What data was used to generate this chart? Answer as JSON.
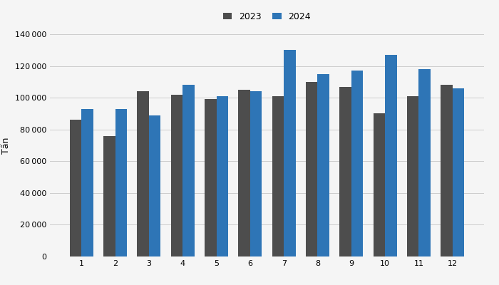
{
  "months": [
    1,
    2,
    3,
    4,
    5,
    6,
    7,
    8,
    9,
    10,
    11,
    12
  ],
  "values_2023": [
    86000,
    76000,
    104000,
    102000,
    99000,
    105000,
    101000,
    110000,
    107000,
    90000,
    101000,
    108000
  ],
  "values_2024": [
    93000,
    93000,
    89000,
    108000,
    101000,
    104000,
    130000,
    115000,
    117000,
    127000,
    118000,
    106000
  ],
  "color_2023": "#4d4d4d",
  "color_2024": "#2e75b6",
  "ylabel": "Tấn",
  "ylim": [
    0,
    140000
  ],
  "yticks": [
    0,
    20000,
    40000,
    60000,
    80000,
    100000,
    120000,
    140000
  ],
  "legend_labels": [
    "2023",
    "2024"
  ],
  "background_color": "#f5f5f5",
  "grid_color": "#cccccc",
  "bar_width": 0.35,
  "legend_fontsize": 9,
  "tick_fontsize": 8,
  "ylabel_fontsize": 9
}
